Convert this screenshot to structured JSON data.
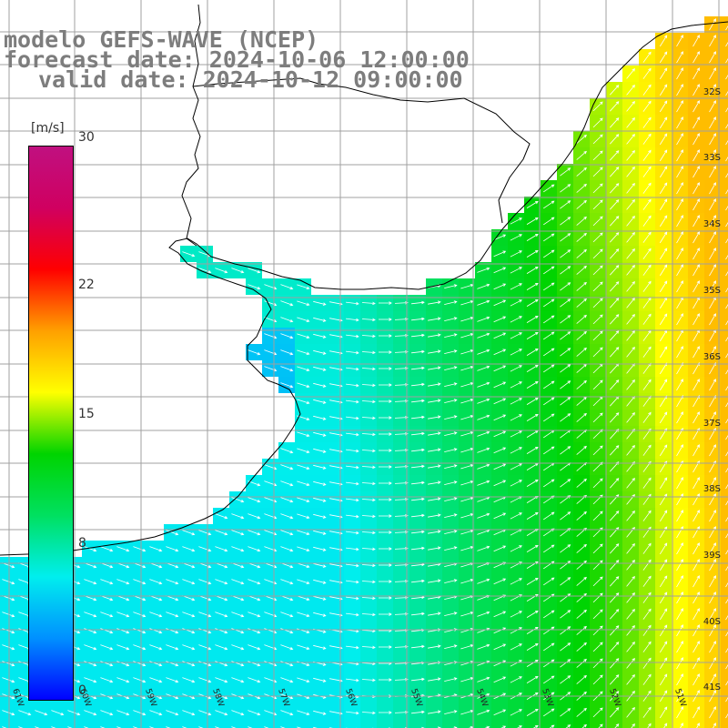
{
  "title": {
    "model": "modelo GEFS-WAVE (NCEP)",
    "forecast_date": "forecast date: 2024-10-06 12:00:00",
    "valid_date": "valid date: 2024-10-12 09:00:00"
  },
  "colorbar": {
    "unit": "[m/s]",
    "min": 0,
    "max": 30,
    "ticks": [
      "30",
      "22",
      "15",
      "8",
      "0"
    ],
    "tick_values": [
      30,
      22,
      15,
      8,
      0
    ],
    "colors": [
      "#0000ff",
      "#0090ff",
      "#00eeee",
      "#00e060",
      "#00d400",
      "#ffff00",
      "#ffa000",
      "#ff0000",
      "#d00060",
      "#c01080"
    ]
  },
  "map": {
    "lat_labels": [
      "32S",
      "33S",
      "34S",
      "35S",
      "36S",
      "37S",
      "38S",
      "39S",
      "40S",
      "41S"
    ],
    "lon_labels": [
      "61W",
      "60W",
      "59W",
      "58W",
      "57W",
      "56W",
      "55W",
      "54W",
      "53W",
      "52W",
      "51W"
    ],
    "lon_range": [
      -61.5,
      -50.5
    ],
    "lat_range": [
      -41.5,
      -31.5
    ],
    "wind_field_description": "",
    "land_color": "#ffffff",
    "grid_color": "#a0a0a0",
    "coast_color": "#000000"
  }
}
